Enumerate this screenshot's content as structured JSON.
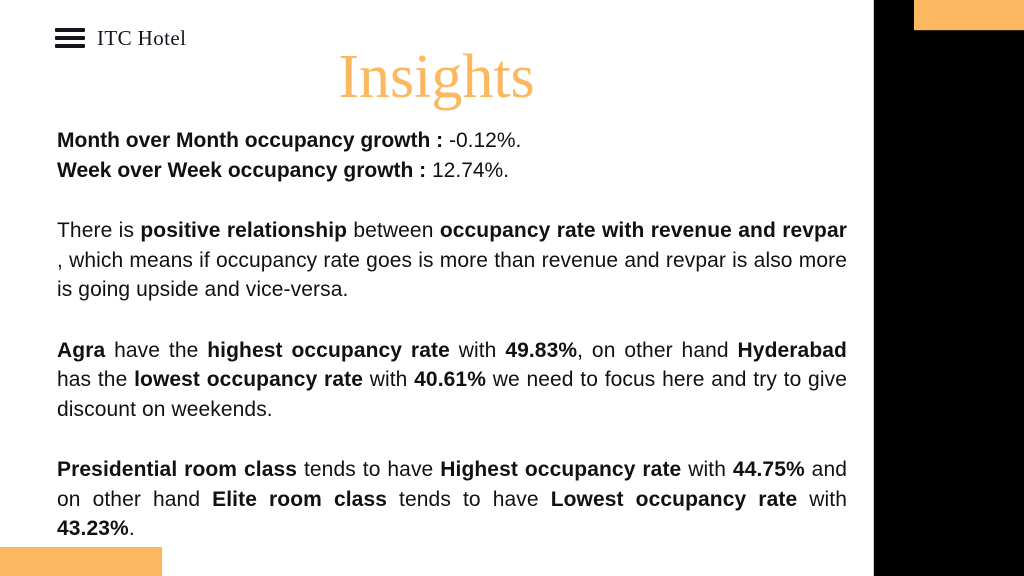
{
  "page": {
    "brand": "ITC Hotel",
    "title": "Insights"
  },
  "colors": {
    "accent_orange": "#FBB860",
    "band_black": "#000000",
    "text_dark": "#111111",
    "brand_dark": "#15141C"
  },
  "icons": {
    "menu": "hamburger-menu-icon"
  },
  "insights": {
    "metrics": [
      {
        "label": "Month over Month occupancy growth :",
        "value": "-0.12%."
      },
      {
        "label": "Week over Week occupancy growth :",
        "value": "12.74%."
      }
    ],
    "paragraphs": [
      [
        {
          "text": "There is ",
          "bold": false
        },
        {
          "text": "positive relationship",
          "bold": true
        },
        {
          "text": " between ",
          "bold": false
        },
        {
          "text": "occupancy rate with revenue and revpar",
          "bold": true
        },
        {
          "text": " , which means if occupancy rate goes is more than revenue and revpar is also more is going upside and vice-versa.",
          "bold": false
        }
      ],
      [
        {
          "text": "Agra",
          "bold": true
        },
        {
          "text": " have the ",
          "bold": false
        },
        {
          "text": "highest occupancy rate",
          "bold": true
        },
        {
          "text": " with ",
          "bold": false
        },
        {
          "text": "49.83%",
          "bold": true
        },
        {
          "text": ", on other hand ",
          "bold": false
        },
        {
          "text": "Hyderabad",
          "bold": true
        },
        {
          "text": " has the ",
          "bold": false
        },
        {
          "text": "lowest occupancy rate",
          "bold": true
        },
        {
          "text": " with ",
          "bold": false
        },
        {
          "text": "40.61%",
          "bold": true
        },
        {
          "text": " we need to focus here and try to give discount on weekends.",
          "bold": false
        }
      ],
      [
        {
          "text": "Presidential room class",
          "bold": true
        },
        {
          "text": " tends to have ",
          "bold": false
        },
        {
          "text": "Highest occupancy rate",
          "bold": true
        },
        {
          "text": " with ",
          "bold": false
        },
        {
          "text": "44.75%",
          "bold": true
        },
        {
          "text": " and on other hand ",
          "bold": false
        },
        {
          "text": "Elite room class",
          "bold": true
        },
        {
          "text": " tends to have ",
          "bold": false
        },
        {
          "text": "Lowest occupancy rate",
          "bold": true
        },
        {
          "text": " with ",
          "bold": false
        },
        {
          "text": "43.23%",
          "bold": true
        },
        {
          "text": ".",
          "bold": false
        }
      ]
    ]
  }
}
